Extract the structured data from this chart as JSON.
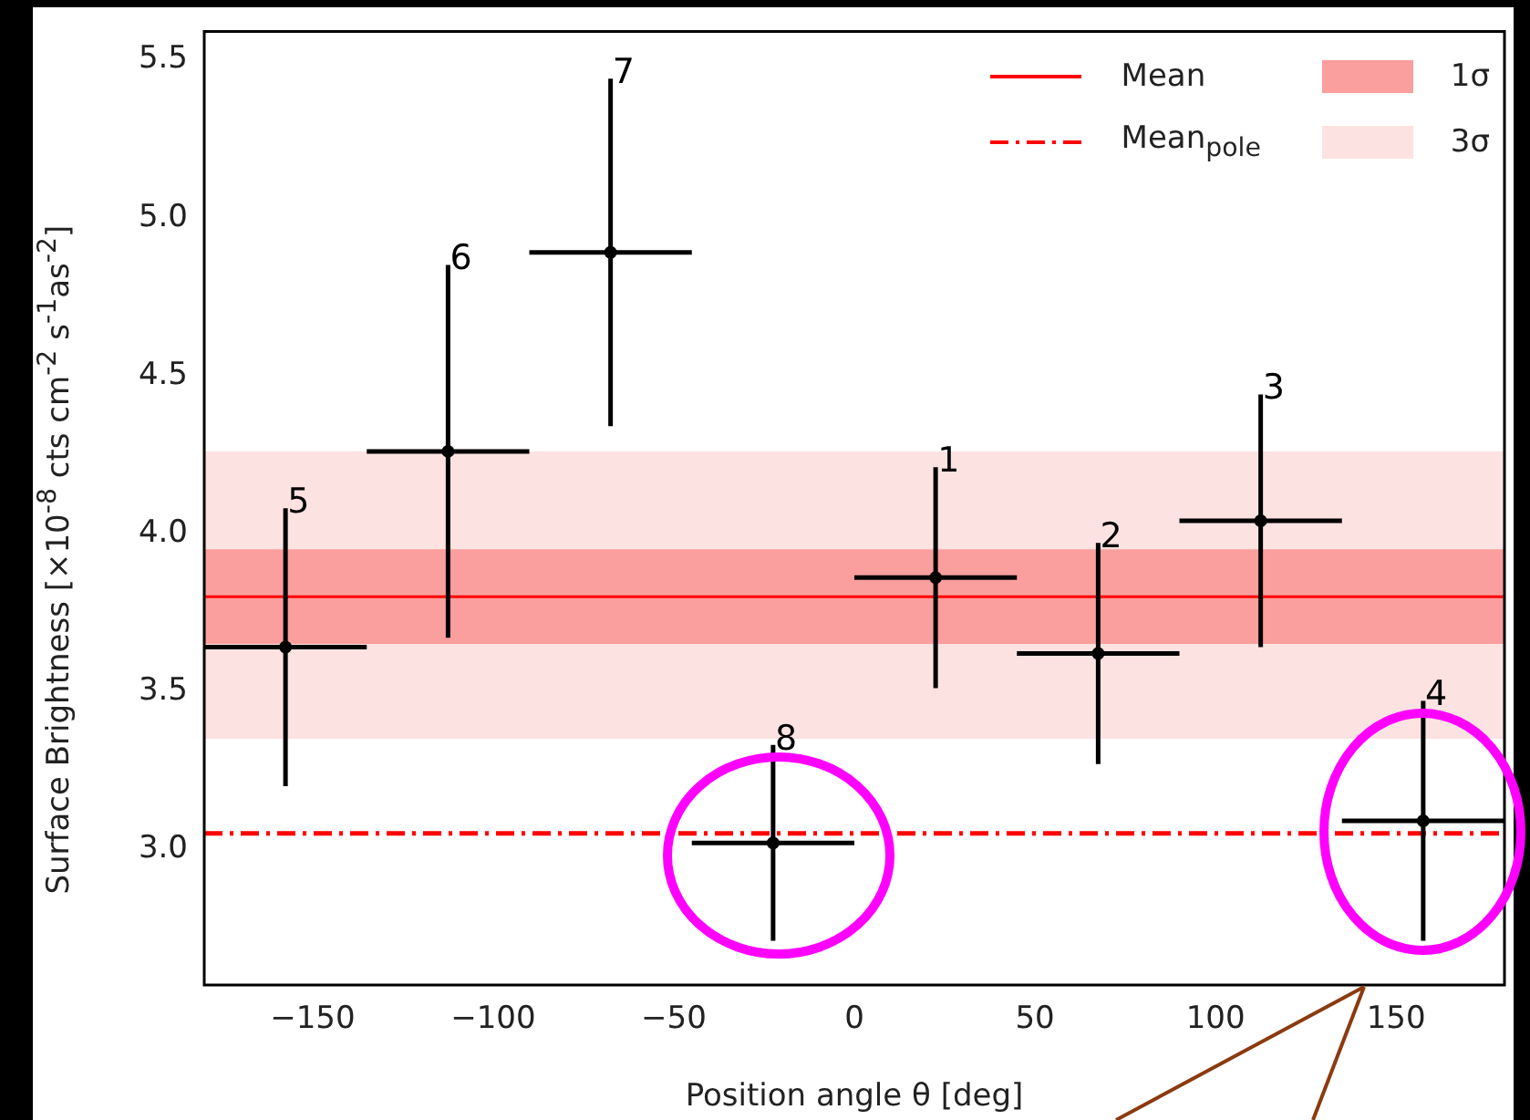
{
  "chart_data": {
    "type": "scatter",
    "xlabel": "Position angle θ [deg]",
    "ylabel": "Surface Brightness [×10$^{-8}$ cts cm$^{-2}$ s$^{-1}$as$^{-2}$]",
    "x": [
      -157.5,
      -112.5,
      -67.5,
      -22.5,
      22.5,
      67.5,
      112.5,
      157.5
    ],
    "series": [
      {
        "type": "scatter",
        "color": "#000000",
        "values": [
          3.64,
          4.26,
          4.89,
          3.02,
          3.86,
          3.62,
          4.04,
          3.09
        ],
        "errors": [
          0.44,
          0.59,
          0.55,
          0.31,
          0.35,
          0.35,
          0.4,
          0.38
        ],
        "xerrors": [
          22.5,
          22.5,
          22.5,
          22.5,
          22.5,
          22.5,
          22.5,
          22.5
        ]
      }
    ],
    "xlim": [
      -180,
      180
    ],
    "ylim": [
      2.57,
      5.59
    ],
    "xticks": [
      {
        "value": -150,
        "label": "−150"
      },
      {
        "value": -100,
        "label": "−100"
      },
      {
        "value": -50,
        "label": "−50"
      },
      0,
      50,
      100,
      150
    ],
    "yticks": [
      {
        "value": 3,
        "label": "3.0"
      },
      3.5,
      {
        "value": 4,
        "label": "4.0"
      },
      4.5,
      {
        "value": 5,
        "label": "5.0"
      },
      5.5
    ],
    "ref_lines": [
      {
        "axis": "y",
        "value": 3.8,
        "label": "Mean",
        "color": "#ff0000",
        "line_style": "solid"
      },
      {
        "axis": "y",
        "value": 3.05,
        "label": "Mean$_{pole}$",
        "color": "#ff0000",
        "line_style": "dashdot"
      }
    ],
    "bands": [
      {
        "axis": "y",
        "from": 3.65,
        "to": 3.95,
        "label": "1σ",
        "color": "#fb9e9e"
      },
      {
        "axis": "y",
        "from": 3.35,
        "to": 4.26,
        "label": "3σ",
        "color": "#fde2e2"
      }
    ],
    "annotations": [
      {
        "text": "5",
        "x": -157.5,
        "y": 4.08
      },
      {
        "text": "6",
        "x": -112.5,
        "y": 4.85
      },
      {
        "text": "7",
        "x": -67.5,
        "y": 5.44
      },
      {
        "text": "8",
        "x": -22.5,
        "y": 3.33
      },
      {
        "text": "1",
        "x": 22.5,
        "y": 4.21
      },
      {
        "text": "2",
        "x": 67.5,
        "y": 3.97
      },
      {
        "text": "3",
        "x": 112.5,
        "y": 4.44
      },
      {
        "text": "4",
        "x": 157.5,
        "y": 3.47
      }
    ],
    "marker": "circle",
    "grid": false,
    "legend": "top right"
  }
}
